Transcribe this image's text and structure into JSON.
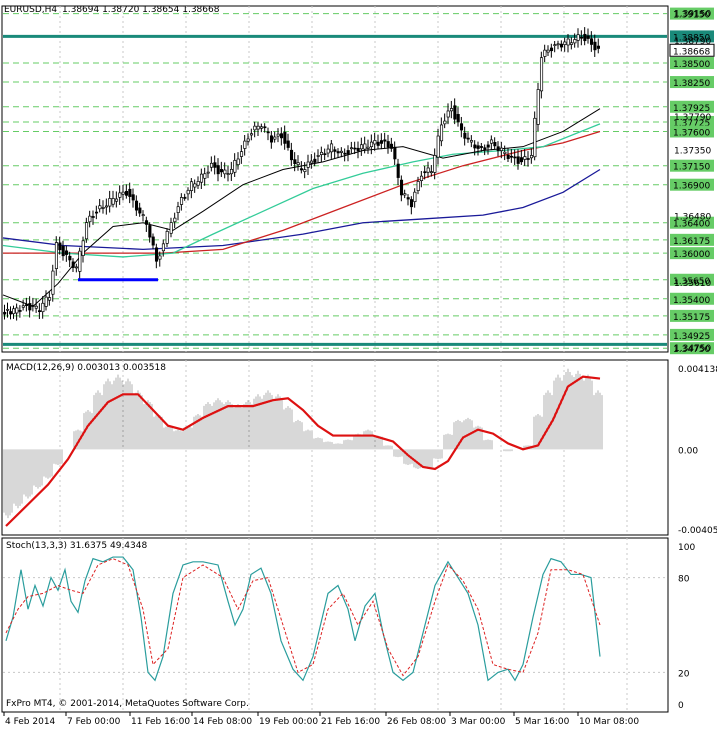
{
  "colors": {
    "background": "#ffffff",
    "grid": "#c8c8c8",
    "level_line": "#66cc66",
    "level_label_bg": "#66cc66",
    "key_level": "#1a8a7a",
    "candle": "#000000",
    "ma_black": "#000000",
    "ma_green": "#33cc99",
    "ma_red": "#cc2222",
    "ma_blue": "#1a1a99",
    "box": "#0000ff",
    "macd_hist": "#b0b0b0",
    "macd_signal": "#dd1111",
    "stoch_main": "#2a9d9d",
    "stoch_signal": "#dd2222",
    "current_label_bg": "#ffffff"
  },
  "header": {
    "symbol": "EURUSD,H4",
    "ohlc": "1.38694 1.38720 1.38654 1.38668"
  },
  "price_axis": {
    "levels": [
      "1.39150",
      "1.38850",
      "1.38500",
      "1.38250",
      "1.37925",
      "1.37725",
      "1.37600",
      "1.37150",
      "1.36900",
      "1.36400",
      "1.36175",
      "1.36000",
      "1.35650",
      "1.35400",
      "1.35175",
      "1.34925",
      "1.34750"
    ],
    "plain_ticks": [
      "1.39150",
      "1.38790",
      "1.37790",
      "1.37350",
      "1.36480",
      "1.35610",
      "1.34750"
    ],
    "key_levels": [
      "1.38850",
      "1.34800"
    ],
    "current_price": "1.38668"
  },
  "macd": {
    "label": "MACD(12,26,9) 0.003013 0.003518",
    "ticks": [
      "0.004138",
      "0.00",
      "-0.004054"
    ]
  },
  "stoch": {
    "label": "Stoch(13,3,3) 31.6375 49.4348",
    "ticks": [
      "100",
      "80",
      "20",
      "0"
    ]
  },
  "watermark": "FxPro MT4, © 2001-2014, MetaQuotes Software Corp.",
  "time_axis": [
    "4 Feb 2014",
    "7 Feb 00:00",
    "11 Feb 16:00",
    "14 Feb 08:00",
    "19 Feb 00:00",
    "21 Feb 16:00",
    "26 Feb 08:00",
    "3 Mar 00:00",
    "5 Mar 16:00",
    "10 Mar 08:00"
  ],
  "chart_data": {
    "type": "line",
    "instrument": "EURUSD",
    "timeframe": "H4",
    "price_range": [
      1.347,
      1.3925
    ],
    "price_close": [
      [
        0,
        1.352
      ],
      [
        12,
        1.3525
      ],
      [
        25,
        1.353
      ],
      [
        38,
        1.3527
      ],
      [
        48,
        1.3545
      ],
      [
        55,
        1.361
      ],
      [
        65,
        1.3595
      ],
      [
        75,
        1.358
      ],
      [
        85,
        1.364
      ],
      [
        95,
        1.3655
      ],
      [
        105,
        1.3665
      ],
      [
        115,
        1.3675
      ],
      [
        125,
        1.368
      ],
      [
        135,
        1.366
      ],
      [
        145,
        1.364
      ],
      [
        155,
        1.359
      ],
      [
        162,
        1.361
      ],
      [
        170,
        1.364
      ],
      [
        180,
        1.367
      ],
      [
        190,
        1.369
      ],
      [
        200,
        1.37
      ],
      [
        210,
        1.3715
      ],
      [
        220,
        1.3705
      ],
      [
        230,
        1.371
      ],
      [
        240,
        1.3735
      ],
      [
        250,
        1.376
      ],
      [
        260,
        1.377
      ],
      [
        270,
        1.375
      ],
      [
        280,
        1.3755
      ],
      [
        290,
        1.3725
      ],
      [
        300,
        1.371
      ],
      [
        310,
        1.372
      ],
      [
        320,
        1.373
      ],
      [
        330,
        1.374
      ],
      [
        340,
        1.373
      ],
      [
        350,
        1.3735
      ],
      [
        360,
        1.374
      ],
      [
        370,
        1.3745
      ],
      [
        380,
        1.3745
      ],
      [
        390,
        1.374
      ],
      [
        400,
        1.368
      ],
      [
        410,
        1.3665
      ],
      [
        420,
        1.3705
      ],
      [
        430,
        1.371
      ],
      [
        440,
        1.377
      ],
      [
        450,
        1.379
      ],
      [
        460,
        1.376
      ],
      [
        470,
        1.3745
      ],
      [
        480,
        1.3735
      ],
      [
        490,
        1.3745
      ],
      [
        500,
        1.3735
      ],
      [
        510,
        1.3725
      ],
      [
        520,
        1.372
      ],
      [
        530,
        1.373
      ],
      [
        540,
        1.386
      ],
      [
        550,
        1.387
      ],
      [
        560,
        1.3875
      ],
      [
        570,
        1.388
      ],
      [
        580,
        1.3885
      ],
      [
        590,
        1.3875
      ],
      [
        597,
        1.3867
      ]
    ],
    "ma_black": [
      [
        0,
        1.3545
      ],
      [
        30,
        1.353
      ],
      [
        55,
        1.356
      ],
      [
        80,
        1.36
      ],
      [
        110,
        1.3635
      ],
      [
        140,
        1.364
      ],
      [
        170,
        1.363
      ],
      [
        200,
        1.3655
      ],
      [
        240,
        1.369
      ],
      [
        280,
        1.371
      ],
      [
        320,
        1.372
      ],
      [
        360,
        1.3735
      ],
      [
        400,
        1.374
      ],
      [
        440,
        1.3725
      ],
      [
        480,
        1.3735
      ],
      [
        520,
        1.374
      ],
      [
        560,
        1.376
      ],
      [
        597,
        1.379
      ]
    ],
    "ma_green": [
      [
        0,
        1.361
      ],
      [
        60,
        1.36
      ],
      [
        120,
        1.3595
      ],
      [
        170,
        1.36
      ],
      [
        210,
        1.3625
      ],
      [
        260,
        1.3655
      ],
      [
        310,
        1.3685
      ],
      [
        360,
        1.3705
      ],
      [
        410,
        1.372
      ],
      [
        450,
        1.373
      ],
      [
        500,
        1.3735
      ],
      [
        540,
        1.374
      ],
      [
        597,
        1.377
      ]
    ],
    "ma_red": [
      [
        0,
        1.36
      ],
      [
        80,
        1.36
      ],
      [
        160,
        1.36
      ],
      [
        220,
        1.3605
      ],
      [
        280,
        1.363
      ],
      [
        340,
        1.366
      ],
      [
        400,
        1.369
      ],
      [
        460,
        1.3715
      ],
      [
        520,
        1.3735
      ],
      [
        560,
        1.3745
      ],
      [
        597,
        1.376
      ]
    ],
    "ma_blue": [
      [
        0,
        1.362
      ],
      [
        60,
        1.361
      ],
      [
        140,
        1.3605
      ],
      [
        220,
        1.361
      ],
      [
        300,
        1.3625
      ],
      [
        360,
        1.364
      ],
      [
        420,
        1.3645
      ],
      [
        480,
        1.365
      ],
      [
        520,
        1.366
      ],
      [
        560,
        1.368
      ],
      [
        597,
        1.371
      ]
    ],
    "box": {
      "x0": 75,
      "x1": 155,
      "price": 1.3565
    },
    "macd": {
      "range": [
        -0.004054,
        0.004138
      ],
      "hist": [
        [
          5,
          -0.0035
        ],
        [
          15,
          -0.003
        ],
        [
          25,
          -0.0025
        ],
        [
          35,
          -0.002
        ],
        [
          45,
          -0.0015
        ],
        [
          55,
          -0.0008
        ],
        [
          65,
          0.0
        ],
        [
          75,
          0.001
        ],
        [
          85,
          0.002
        ],
        [
          95,
          0.003
        ],
        [
          105,
          0.0036
        ],
        [
          115,
          0.0038
        ],
        [
          125,
          0.0036
        ],
        [
          135,
          0.003
        ],
        [
          145,
          0.0025
        ],
        [
          155,
          0.0018
        ],
        [
          165,
          0.0012
        ],
        [
          175,
          0.001
        ],
        [
          185,
          0.0012
        ],
        [
          195,
          0.0018
        ],
        [
          205,
          0.0024
        ],
        [
          215,
          0.0026
        ],
        [
          225,
          0.0025
        ],
        [
          235,
          0.0023
        ],
        [
          245,
          0.0025
        ],
        [
          255,
          0.0028
        ],
        [
          265,
          0.003
        ],
        [
          275,
          0.0028
        ],
        [
          285,
          0.0022
        ],
        [
          295,
          0.0015
        ],
        [
          305,
          0.001
        ],
        [
          315,
          0.0006
        ],
        [
          325,
          0.0004
        ],
        [
          335,
          0.0003
        ],
        [
          345,
          0.0005
        ],
        [
          355,
          0.0008
        ],
        [
          365,
          0.001
        ],
        [
          375,
          0.0007
        ],
        [
          385,
          0.0002
        ],
        [
          395,
          -0.0004
        ],
        [
          405,
          -0.0008
        ],
        [
          415,
          -0.001
        ],
        [
          425,
          -0.001
        ],
        [
          435,
          -0.0005
        ],
        [
          445,
          0.0008
        ],
        [
          455,
          0.0015
        ],
        [
          465,
          0.0016
        ],
        [
          475,
          0.0012
        ],
        [
          485,
          0.0005
        ],
        [
          495,
          0.0
        ],
        [
          505,
          -0.0001
        ],
        [
          515,
          0.0
        ],
        [
          525,
          0.0002
        ],
        [
          535,
          0.0018
        ],
        [
          545,
          0.003
        ],
        [
          555,
          0.0038
        ],
        [
          565,
          0.0041
        ],
        [
          575,
          0.004
        ],
        [
          585,
          0.0038
        ],
        [
          595,
          0.003
        ]
      ],
      "signal": [
        [
          3,
          -0.0039
        ],
        [
          25,
          -0.0028
        ],
        [
          45,
          -0.0018
        ],
        [
          65,
          -0.0005
        ],
        [
          85,
          0.0012
        ],
        [
          105,
          0.0024
        ],
        [
          120,
          0.0028
        ],
        [
          135,
          0.0028
        ],
        [
          150,
          0.002
        ],
        [
          165,
          0.0012
        ],
        [
          180,
          0.001
        ],
        [
          200,
          0.0016
        ],
        [
          225,
          0.0022
        ],
        [
          250,
          0.0022
        ],
        [
          270,
          0.0025
        ],
        [
          285,
          0.0026
        ],
        [
          300,
          0.002
        ],
        [
          315,
          0.0012
        ],
        [
          330,
          0.0007
        ],
        [
          350,
          0.0007
        ],
        [
          370,
          0.0007
        ],
        [
          390,
          0.0004
        ],
        [
          405,
          -0.0003
        ],
        [
          420,
          -0.0009
        ],
        [
          432,
          -0.001
        ],
        [
          445,
          -0.0006
        ],
        [
          460,
          0.0006
        ],
        [
          475,
          0.001
        ],
        [
          490,
          0.0008
        ],
        [
          505,
          0.0003
        ],
        [
          520,
          0.0
        ],
        [
          535,
          0.0002
        ],
        [
          550,
          0.0015
        ],
        [
          565,
          0.0032
        ],
        [
          580,
          0.0037
        ],
        [
          597,
          0.0036
        ]
      ]
    },
    "stoch": {
      "range": [
        0,
        100
      ],
      "main": [
        [
          3,
          40
        ],
        [
          10,
          55
        ],
        [
          18,
          85
        ],
        [
          25,
          60
        ],
        [
          32,
          75
        ],
        [
          40,
          62
        ],
        [
          48,
          80
        ],
        [
          55,
          72
        ],
        [
          62,
          85
        ],
        [
          68,
          65
        ],
        [
          75,
          58
        ],
        [
          82,
          78
        ],
        [
          90,
          92
        ],
        [
          100,
          90
        ],
        [
          110,
          93
        ],
        [
          120,
          93
        ],
        [
          130,
          85
        ],
        [
          138,
          55
        ],
        [
          145,
          20
        ],
        [
          152,
          15
        ],
        [
          160,
          30
        ],
        [
          170,
          70
        ],
        [
          180,
          88
        ],
        [
          190,
          90
        ],
        [
          200,
          90
        ],
        [
          215,
          88
        ],
        [
          225,
          65
        ],
        [
          232,
          50
        ],
        [
          240,
          60
        ],
        [
          248,
          82
        ],
        [
          258,
          86
        ],
        [
          268,
          70
        ],
        [
          278,
          40
        ],
        [
          290,
          22
        ],
        [
          300,
          15
        ],
        [
          310,
          30
        ],
        [
          325,
          70
        ],
        [
          335,
          75
        ],
        [
          345,
          60
        ],
        [
          352,
          40
        ],
        [
          362,
          62
        ],
        [
          372,
          70
        ],
        [
          380,
          45
        ],
        [
          390,
          20
        ],
        [
          400,
          15
        ],
        [
          410,
          20
        ],
        [
          420,
          45
        ],
        [
          432,
          75
        ],
        [
          445,
          90
        ],
        [
          455,
          80
        ],
        [
          465,
          70
        ],
        [
          475,
          50
        ],
        [
          485,
          15
        ],
        [
          495,
          20
        ],
        [
          505,
          22
        ],
        [
          512,
          15
        ],
        [
          520,
          25
        ],
        [
          530,
          55
        ],
        [
          540,
          82
        ],
        [
          548,
          92
        ],
        [
          558,
          90
        ],
        [
          568,
          82
        ],
        [
          578,
          82
        ],
        [
          588,
          80
        ],
        [
          597,
          30
        ]
      ],
      "signal": [
        [
          3,
          45
        ],
        [
          15,
          60
        ],
        [
          25,
          68
        ],
        [
          40,
          70
        ],
        [
          55,
          75
        ],
        [
          68,
          72
        ],
        [
          80,
          70
        ],
        [
          95,
          88
        ],
        [
          110,
          92
        ],
        [
          125,
          88
        ],
        [
          140,
          60
        ],
        [
          150,
          25
        ],
        [
          165,
          35
        ],
        [
          180,
          80
        ],
        [
          200,
          88
        ],
        [
          220,
          80
        ],
        [
          235,
          60
        ],
        [
          250,
          78
        ],
        [
          265,
          80
        ],
        [
          280,
          50
        ],
        [
          295,
          20
        ],
        [
          310,
          25
        ],
        [
          325,
          60
        ],
        [
          340,
          70
        ],
        [
          355,
          50
        ],
        [
          370,
          65
        ],
        [
          385,
          35
        ],
        [
          400,
          18
        ],
        [
          415,
          30
        ],
        [
          432,
          65
        ],
        [
          445,
          88
        ],
        [
          460,
          78
        ],
        [
          475,
          60
        ],
        [
          490,
          25
        ],
        [
          505,
          22
        ],
        [
          520,
          20
        ],
        [
          535,
          45
        ],
        [
          548,
          85
        ],
        [
          565,
          85
        ],
        [
          580,
          82
        ],
        [
          597,
          50
        ]
      ]
    }
  }
}
